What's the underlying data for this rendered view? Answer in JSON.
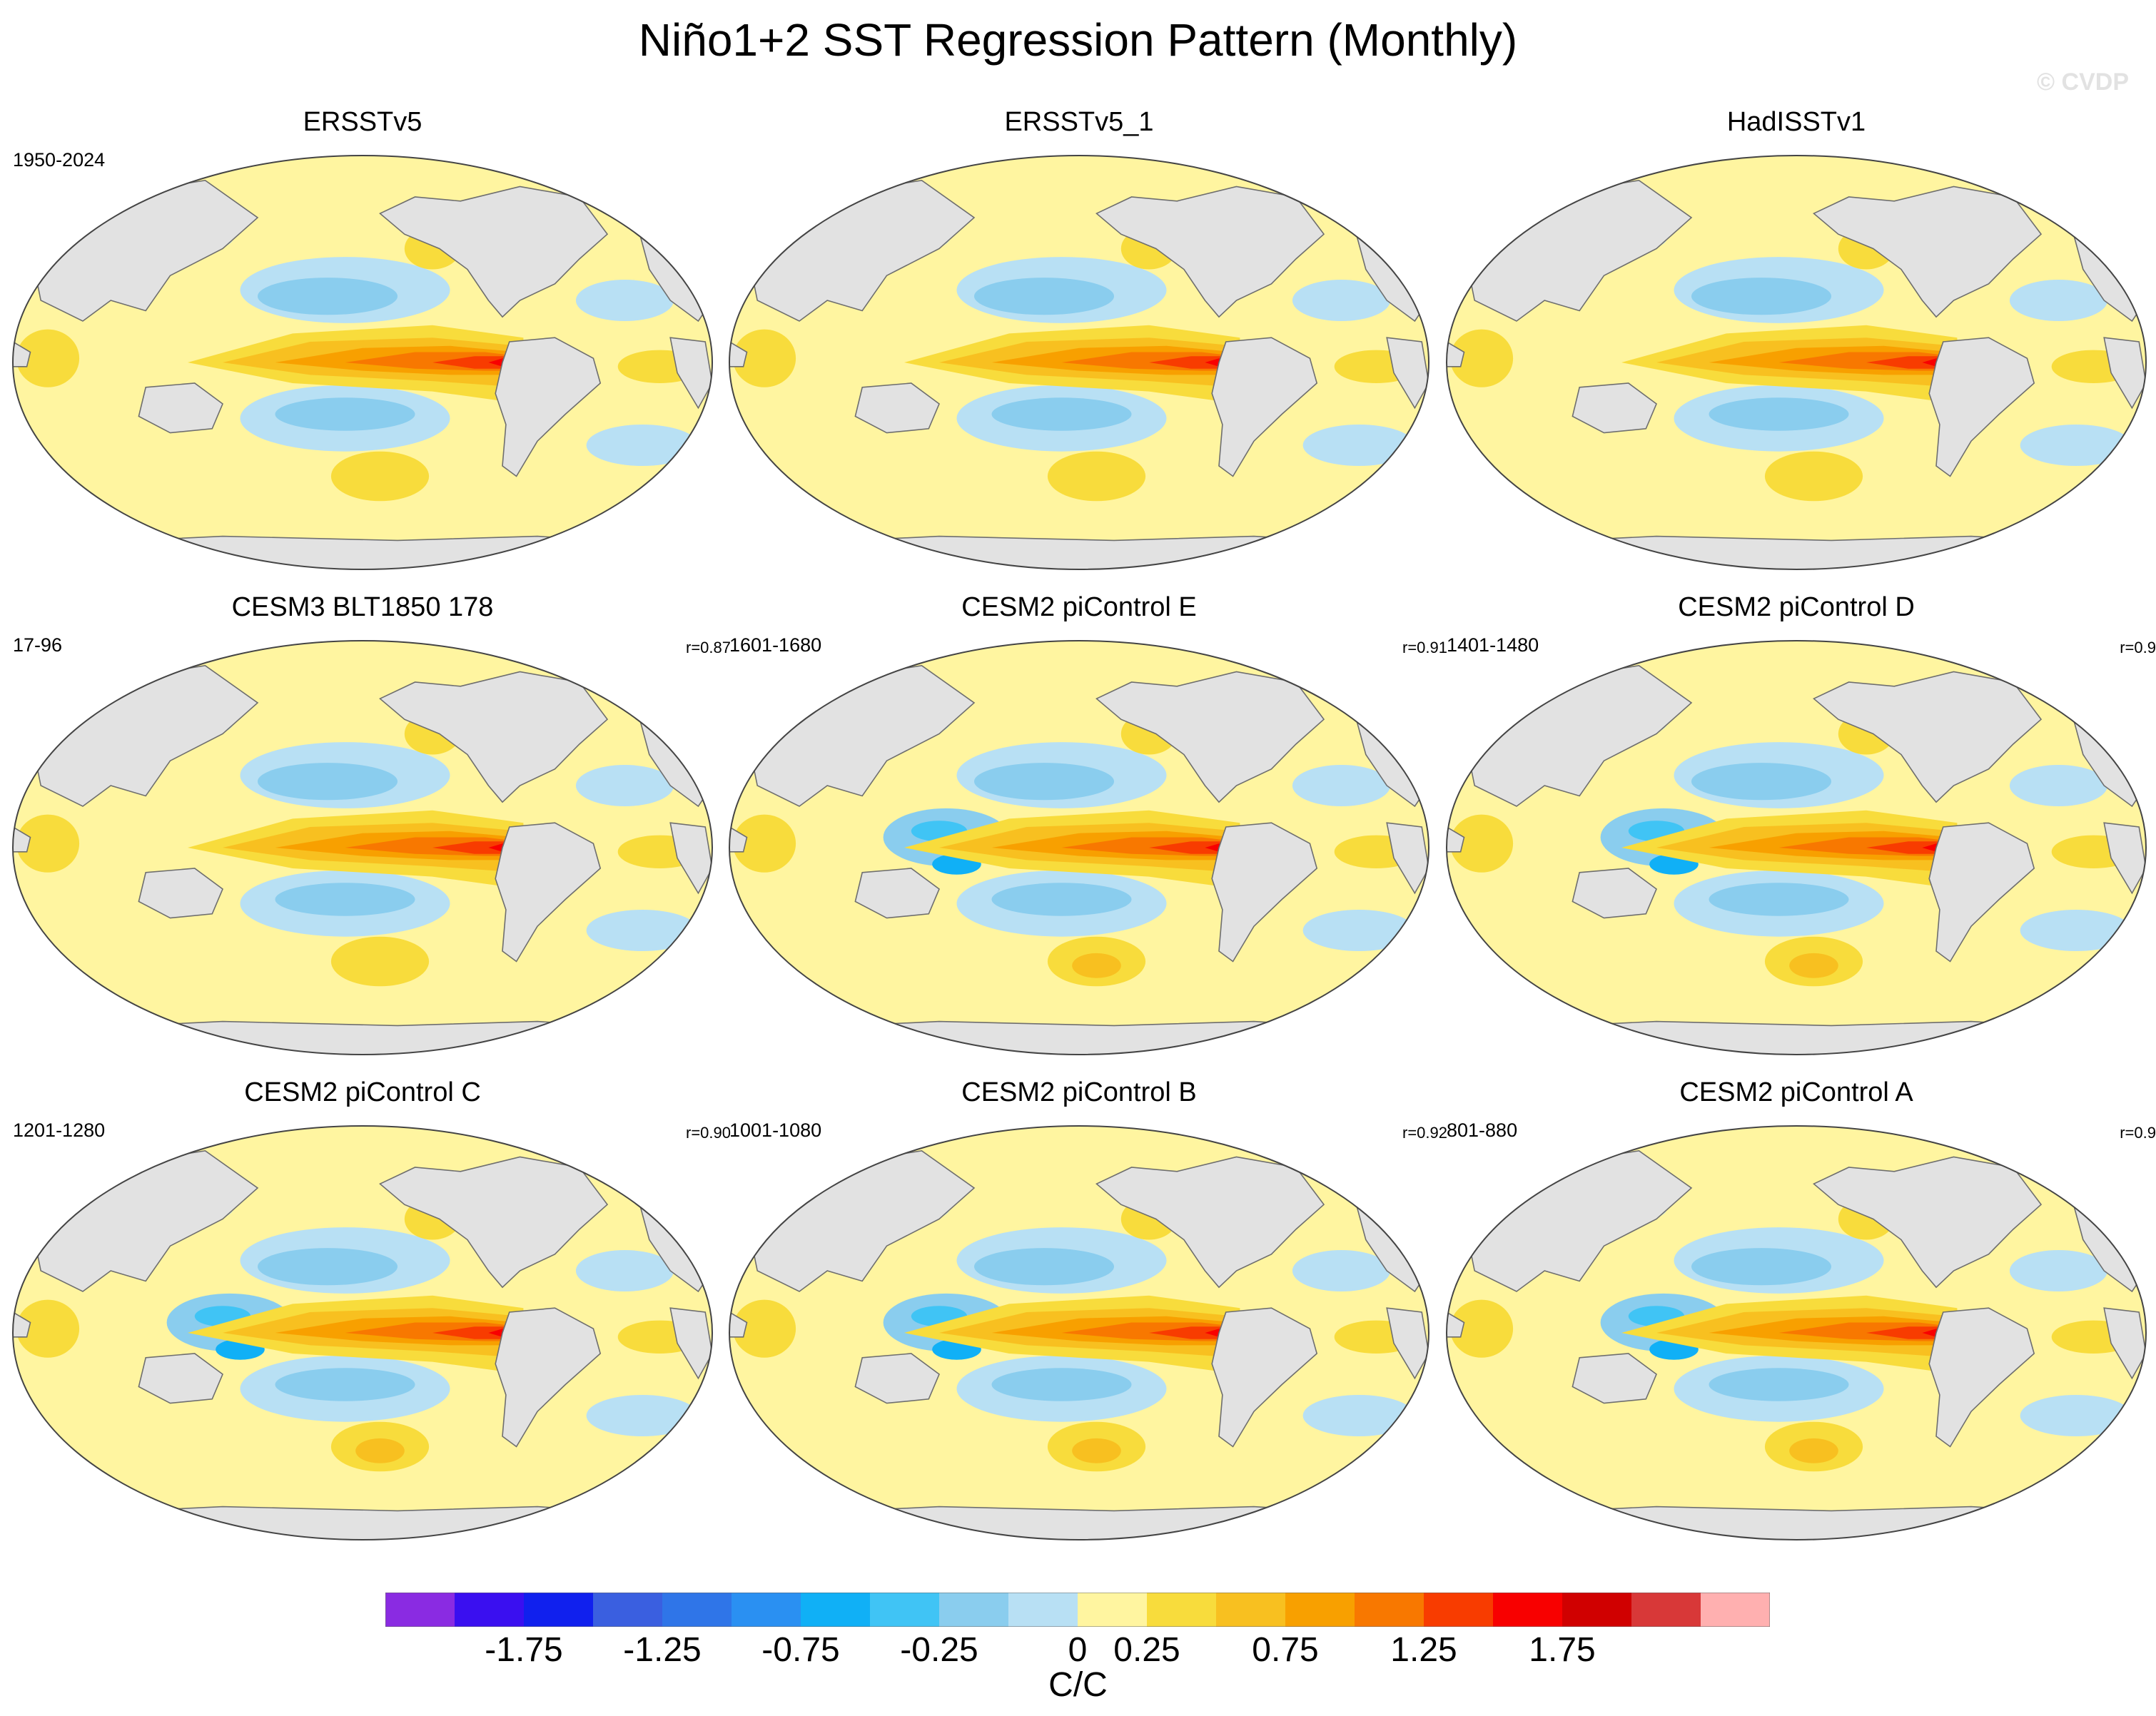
{
  "figure": {
    "title": "Niño1+2 SST Regression Pattern (Monthly)",
    "copyright": "© CVDP"
  },
  "panels": [
    {
      "title": "ERSSTv5",
      "period": "1950-2024",
      "r": ""
    },
    {
      "title": "ERSSTv5_1",
      "period": "",
      "r": ""
    },
    {
      "title": "HadISSTv1",
      "period": "",
      "r": ""
    },
    {
      "title": "CESM3 BLT1850 178",
      "period": "17-96",
      "r": "r=0.87"
    },
    {
      "title": "CESM2 piControl E",
      "period": "1601-1680",
      "r": "r=0.91"
    },
    {
      "title": "CESM2 piControl D",
      "period": "1401-1480",
      "r": "r=0.9"
    },
    {
      "title": "CESM2 piControl C",
      "period": "1201-1280",
      "r": "r=0.90"
    },
    {
      "title": "CESM2 piControl B",
      "period": "1001-1080",
      "r": "r=0.92"
    },
    {
      "title": "CESM2 piControl A",
      "period": "801-880",
      "r": "r=0.9"
    }
  ],
  "colorbar": {
    "units": "C/C",
    "labels": [
      "-1.75",
      "-1.25",
      "-0.75",
      "-0.25",
      "0",
      "0.25",
      "0.75",
      "1.25",
      "1.75"
    ],
    "colors": [
      "#8a2be2",
      "#3a0ff0",
      "#1020ee",
      "#3a5fe0",
      "#2f75e8",
      "#2a90f2",
      "#10b0f6",
      "#40c4f5",
      "#8acdee",
      "#b8e0f4",
      "#fff5a0",
      "#f8dc3c",
      "#f8c020",
      "#f8a000",
      "#f87800",
      "#f83c00",
      "#f80000",
      "#d00000",
      "#d83838",
      "#ffb0b0"
    ]
  },
  "map_colors": {
    "land": "#e2e2e2",
    "coast": "#6e6e6e",
    "ocean_neutral": "#fff5a0"
  }
}
